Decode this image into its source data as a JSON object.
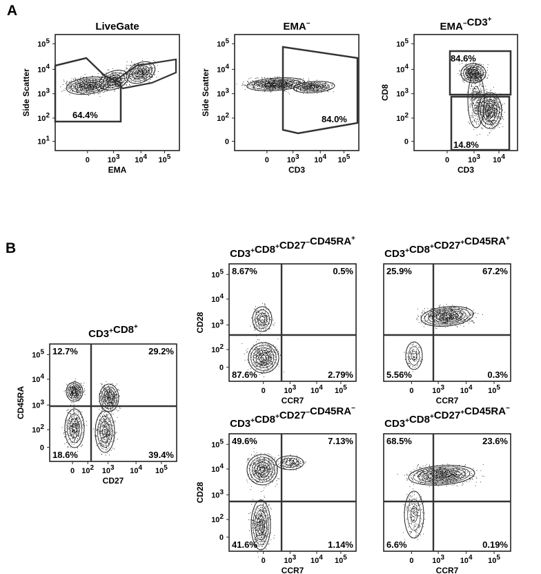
{
  "figure": {
    "panel_a_letter": "A",
    "panel_b_letter": "B"
  },
  "chart_data": [
    {
      "type": "scatter",
      "subtype": "flow-cytometry-contour",
      "title": "Live Gate",
      "xlabel": "EMA",
      "ylabel": "Side Scatter",
      "x_ticks": [
        "0",
        "10^3",
        "10^4",
        "10^5"
      ],
      "y_ticks": [
        "10^5",
        "10^4",
        "10^3",
        "10^2",
        "10^1"
      ],
      "gate_labels": [
        {
          "text": "64.4%",
          "position": "bottom-left"
        }
      ]
    },
    {
      "type": "scatter",
      "subtype": "flow-cytometry-contour",
      "title": "EMA−",
      "xlabel": "CD3",
      "ylabel": "Side Scatter",
      "x_ticks": [
        "0",
        "10^3",
        "10^4",
        "10^5"
      ],
      "y_ticks": [
        "10^5",
        "10^4",
        "10^3",
        "10^2",
        "0"
      ],
      "gate_labels": [
        {
          "text": "84.0%",
          "position": "bottom-right"
        }
      ]
    },
    {
      "type": "scatter",
      "subtype": "flow-cytometry-contour",
      "title": "EMA−CD3+",
      "xlabel": "CD3",
      "ylabel": "CD8",
      "x_ticks": [
        "0",
        "10^3",
        "10^4"
      ],
      "y_ticks": [
        "10^5",
        "10^4",
        "10^3",
        "10^2",
        "0"
      ],
      "gate_labels": [
        {
          "text": "84.6%",
          "position": "top"
        },
        {
          "text": "14.8%",
          "position": "bottom"
        }
      ]
    },
    {
      "type": "scatter",
      "subtype": "flow-cytometry-quadrant",
      "title": "CD3+CD8+",
      "xlabel": "CD27",
      "ylabel": "CD45RA",
      "x_ticks": [
        "0",
        "10^2",
        "10^3",
        "10^4",
        "10^5"
      ],
      "y_ticks": [
        "10^5",
        "10^4",
        "10^3",
        "10^2",
        "0"
      ],
      "quadrants": {
        "upper_left": "12.7%",
        "upper_right": "29.2%",
        "lower_left": "18.6%",
        "lower_right": "39.4%"
      }
    },
    {
      "type": "scatter",
      "subtype": "flow-cytometry-quadrant",
      "title": "CD3+CD8+CD27−CD45RA+",
      "xlabel": "CCR7",
      "ylabel": "CD28",
      "x_ticks": [
        "0",
        "10^3",
        "10^4",
        "10^5"
      ],
      "y_ticks": [
        "10^5",
        "10^4",
        "10^3",
        "10^2",
        "0"
      ],
      "quadrants": {
        "upper_left": "8.67%",
        "upper_right": "0.5%",
        "lower_left": "87.6%",
        "lower_right": "2.79%"
      }
    },
    {
      "type": "scatter",
      "subtype": "flow-cytometry-quadrant",
      "title": "CD3+CD8+CD27+CD45RA+",
      "xlabel": "CCR7",
      "ylabel": "",
      "x_ticks": [
        "0",
        "10^3",
        "10^4",
        "10^5"
      ],
      "y_ticks": [],
      "quadrants": {
        "upper_left": "25.9%",
        "upper_right": "67.2%",
        "lower_left": "5.56%",
        "lower_right": "0.3%"
      }
    },
    {
      "type": "scatter",
      "subtype": "flow-cytometry-quadrant",
      "title": "CD3+CD8+CD27−CD45RA−",
      "xlabel": "CCR7",
      "ylabel": "CD28",
      "x_ticks": [
        "0",
        "10^3",
        "10^4",
        "10^5"
      ],
      "y_ticks": [
        "10^5",
        "10^4",
        "10^3",
        "10^2",
        "0"
      ],
      "quadrants": {
        "upper_left": "49.6%",
        "upper_right": "7.13%",
        "lower_left": "41.6%",
        "lower_right": "1.14%"
      }
    },
    {
      "type": "scatter",
      "subtype": "flow-cytometry-quadrant",
      "title": "CD3+CD8+CD27+CD45RA−",
      "xlabel": "CCR7",
      "ylabel": "",
      "x_ticks": [
        "0",
        "10^3",
        "10^4",
        "10^5"
      ],
      "y_ticks": [],
      "quadrants": {
        "upper_left": "68.5%",
        "upper_right": "23.6%",
        "lower_left": "6.6%",
        "lower_right": "0.19%"
      }
    }
  ]
}
